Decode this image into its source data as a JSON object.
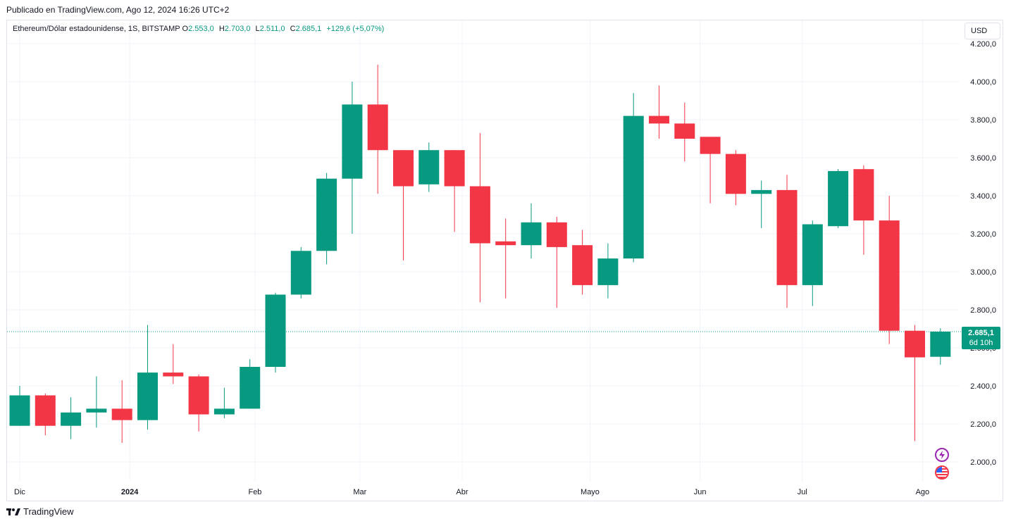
{
  "header": {
    "published": "Publicado en TradingView.com, Ago 12, 2024 16:26 UTC+2"
  },
  "legend": {
    "symbol": "Ethereum/Dólar estadounidense, 1S, BITSTAMP",
    "o_label": "O",
    "o_value": "2.553,0",
    "h_label": "H",
    "h_value": "2.703,0",
    "l_label": "L",
    "l_value": "2.511,0",
    "c_label": "C",
    "c_value": "2.685,1",
    "change": "+129,6 (+5,07%)"
  },
  "currency_button": "USD",
  "price_tag": {
    "price": "2.685,1",
    "countdown": "6d 10h"
  },
  "footer": {
    "brand": "TradingView"
  },
  "colors": {
    "up": "#089981",
    "down": "#f23645",
    "grid": "#f0f3fa",
    "text": "#131722"
  },
  "icons": {
    "events": [
      "lightning-icon",
      "us-flag-icon"
    ],
    "logo": "tradingview-logo-icon"
  },
  "chart_data": {
    "type": "candlestick",
    "title": "Ethereum/Dólar estadounidense, 1S, BITSTAMP",
    "interval": "1S",
    "ylim": [
      1850,
      4250
    ],
    "y_ticks": [
      2000,
      2200,
      2400,
      2600,
      2800,
      3000,
      3200,
      3400,
      3600,
      3800,
      4000,
      4200
    ],
    "y_tick_labels": [
      "2.000,0",
      "2.200,0",
      "2.400,0",
      "2.600,0",
      "2.800,0",
      "3.000,0",
      "3.200,0",
      "3.400,0",
      "3.600,0",
      "3.800,0",
      "4.000,0",
      "4.200,0"
    ],
    "x_labels": [
      {
        "label": "Dic",
        "at": 0,
        "bold": false
      },
      {
        "label": "2024",
        "at": 4.3,
        "bold": true
      },
      {
        "label": "Feb",
        "at": 9.2,
        "bold": false
      },
      {
        "label": "Mar",
        "at": 13.3,
        "bold": false
      },
      {
        "label": "Abr",
        "at": 17.3,
        "bold": false
      },
      {
        "label": "Mayo",
        "at": 22.3,
        "bold": false
      },
      {
        "label": "Jun",
        "at": 26.6,
        "bold": false
      },
      {
        "label": "Jul",
        "at": 30.6,
        "bold": false
      },
      {
        "label": "Ago",
        "at": 35.3,
        "bold": false
      }
    ],
    "grid": true,
    "last_price": 2685.1,
    "candles": [
      {
        "o": 2190,
        "h": 2400,
        "l": 2190,
        "c": 2350
      },
      {
        "o": 2350,
        "h": 2360,
        "l": 2140,
        "c": 2190
      },
      {
        "o": 2190,
        "h": 2340,
        "l": 2120,
        "c": 2260
      },
      {
        "o": 2260,
        "h": 2450,
        "l": 2180,
        "c": 2280
      },
      {
        "o": 2280,
        "h": 2430,
        "l": 2100,
        "c": 2220
      },
      {
        "o": 2220,
        "h": 2720,
        "l": 2170,
        "c": 2470
      },
      {
        "o": 2470,
        "h": 2620,
        "l": 2410,
        "c": 2450
      },
      {
        "o": 2450,
        "h": 2460,
        "l": 2160,
        "c": 2250
      },
      {
        "o": 2250,
        "h": 2390,
        "l": 2230,
        "c": 2280
      },
      {
        "o": 2280,
        "h": 2540,
        "l": 2280,
        "c": 2500
      },
      {
        "o": 2500,
        "h": 2890,
        "l": 2470,
        "c": 2880
      },
      {
        "o": 2880,
        "h": 3130,
        "l": 2860,
        "c": 3110
      },
      {
        "o": 3110,
        "h": 3520,
        "l": 3040,
        "c": 3490
      },
      {
        "o": 3490,
        "h": 4000,
        "l": 3200,
        "c": 3880
      },
      {
        "o": 3880,
        "h": 4090,
        "l": 3410,
        "c": 3640
      },
      {
        "o": 3640,
        "h": 3640,
        "l": 3060,
        "c": 3450
      },
      {
        "o": 3460,
        "h": 3680,
        "l": 3420,
        "c": 3640
      },
      {
        "o": 3640,
        "h": 3640,
        "l": 3210,
        "c": 3450
      },
      {
        "o": 3450,
        "h": 3730,
        "l": 2840,
        "c": 3150
      },
      {
        "o": 3160,
        "h": 3280,
        "l": 2860,
        "c": 3140
      },
      {
        "o": 3140,
        "h": 3360,
        "l": 3070,
        "c": 3260
      },
      {
        "o": 3260,
        "h": 3290,
        "l": 2810,
        "c": 3130
      },
      {
        "o": 3140,
        "h": 3220,
        "l": 2880,
        "c": 2930
      },
      {
        "o": 2930,
        "h": 3150,
        "l": 2860,
        "c": 3070
      },
      {
        "o": 3070,
        "h": 3940,
        "l": 3050,
        "c": 3820
      },
      {
        "o": 3820,
        "h": 3980,
        "l": 3700,
        "c": 3780
      },
      {
        "o": 3780,
        "h": 3890,
        "l": 3580,
        "c": 3700
      },
      {
        "o": 3710,
        "h": 3710,
        "l": 3360,
        "c": 3620
      },
      {
        "o": 3620,
        "h": 3640,
        "l": 3350,
        "c": 3410
      },
      {
        "o": 3410,
        "h": 3480,
        "l": 3230,
        "c": 3430
      },
      {
        "o": 3430,
        "h": 3510,
        "l": 2810,
        "c": 2930
      },
      {
        "o": 2930,
        "h": 3270,
        "l": 2820,
        "c": 3250
      },
      {
        "o": 3240,
        "h": 3540,
        "l": 3230,
        "c": 3530
      },
      {
        "o": 3540,
        "h": 3560,
        "l": 3090,
        "c": 3270
      },
      {
        "o": 3270,
        "h": 3400,
        "l": 2620,
        "c": 2690
      },
      {
        "o": 2690,
        "h": 2720,
        "l": 2110,
        "c": 2550
      },
      {
        "o": 2553,
        "h": 2703,
        "l": 2511,
        "c": 2685.1
      }
    ]
  }
}
